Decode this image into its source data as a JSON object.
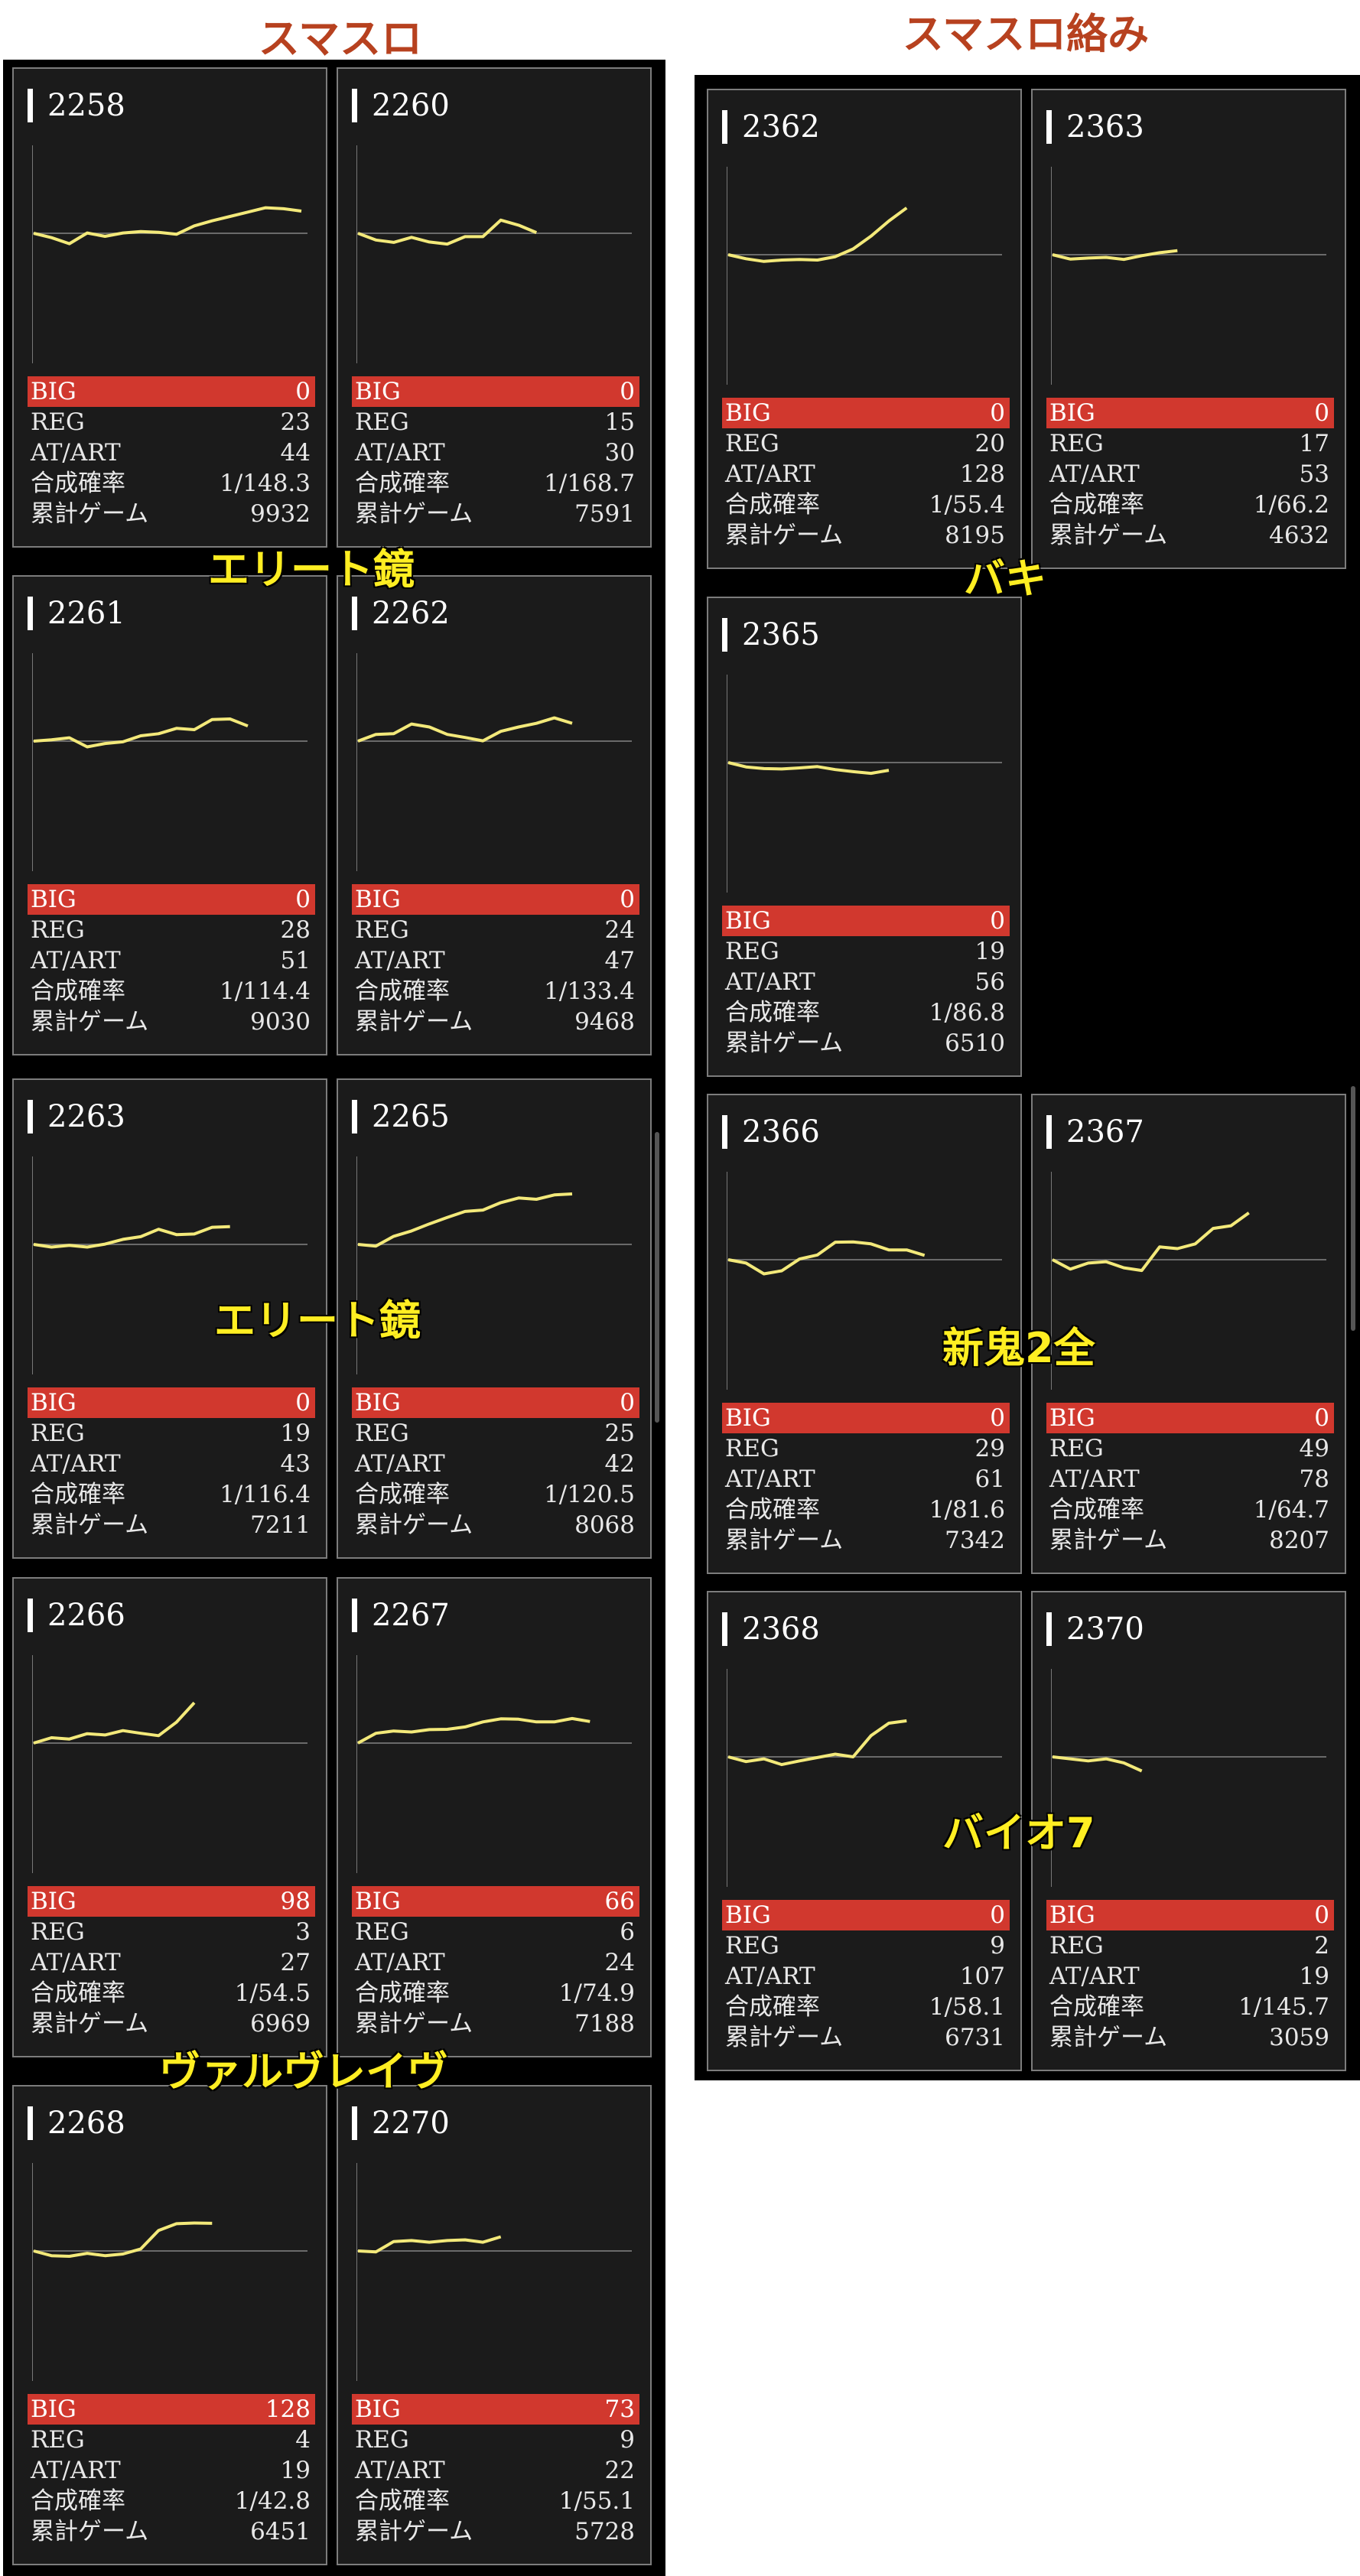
{
  "left_heading": "スマスロ",
  "right_heading": "スマスロ絡み",
  "labels": {
    "big": "BIG",
    "reg": "REG",
    "at": "AT/ART",
    "prob": "合成確率",
    "games": "累計ゲーム"
  },
  "colors": {
    "line": "#f3e97a",
    "big_bar": "#d1382e",
    "overlay_text": "#ffee22",
    "heading": "#b7411f"
  },
  "left_cards": [
    {
      "num": "2258",
      "big": "0",
      "reg": "23",
      "at": "44",
      "prob": "1/148.3",
      "games": "9932",
      "graph": [
        0,
        -0.26,
        -0.62,
        0.02,
        -0.18,
        0.02,
        0.1,
        0.06,
        -0.06,
        0.44,
        0.74,
        1.0,
        1.26,
        1.52,
        1.46,
        1.32
      ]
    },
    {
      "num": "2260",
      "big": "0",
      "reg": "15",
      "at": "30",
      "prob": "1/168.7",
      "games": "7591",
      "graph": [
        0,
        -0.4,
        -0.54,
        -0.24,
        -0.52,
        -0.64,
        -0.2,
        -0.2,
        0.78,
        0.48,
        0.04
      ]
    },
    {
      "num": "2261",
      "big": "0",
      "reg": "28",
      "at": "51",
      "prob": "1/114.4",
      "games": "9030",
      "graph": [
        0,
        0.08,
        0.2,
        -0.34,
        -0.14,
        -0.04,
        0.32,
        0.44,
        0.76,
        0.68,
        1.28,
        1.32,
        0.9
      ]
    },
    {
      "num": "2262",
      "big": "0",
      "reg": "24",
      "at": "47",
      "prob": "1/133.4",
      "games": "9468",
      "graph": [
        0,
        0.4,
        0.44,
        1.02,
        0.84,
        0.4,
        0.22,
        0.02,
        0.58,
        0.84,
        1.06,
        1.38,
        1.06
      ]
    },
    {
      "num": "2263",
      "big": "0",
      "reg": "19",
      "at": "43",
      "prob": "1/116.4",
      "games": "7211",
      "graph": [
        0,
        -0.16,
        -0.06,
        -0.16,
        0.02,
        0.3,
        0.46,
        0.9,
        0.58,
        0.62,
        1.02,
        1.06
      ]
    },
    {
      "num": "2265",
      "big": "0",
      "reg": "25",
      "at": "42",
      "prob": "1/120.5",
      "games": "8068",
      "graph": [
        0,
        -0.1,
        0.48,
        0.8,
        1.22,
        1.6,
        1.96,
        2.04,
        2.48,
        2.76,
        2.68,
        2.94,
        3.0
      ]
    },
    {
      "num": "2266",
      "big": "98",
      "reg": "3",
      "at": "27",
      "prob": "1/54.5",
      "games": "6969",
      "graph": [
        0,
        0.32,
        0.24,
        0.56,
        0.48,
        0.74,
        0.58,
        0.44,
        1.24,
        2.4
      ]
    },
    {
      "num": "2267",
      "big": "66",
      "reg": "6",
      "at": "24",
      "prob": "1/74.9",
      "games": "7188",
      "graph": [
        0,
        0.58,
        0.72,
        0.66,
        0.8,
        0.82,
        0.96,
        1.26,
        1.44,
        1.42,
        1.26,
        1.26,
        1.46,
        1.28
      ]
    },
    {
      "num": "2268",
      "big": "128",
      "reg": "4",
      "at": "19",
      "prob": "1/42.8",
      "games": "6451",
      "graph": [
        0,
        -0.28,
        -0.32,
        -0.14,
        -0.28,
        -0.18,
        0.12,
        1.22,
        1.62,
        1.66,
        1.64
      ]
    },
    {
      "num": "2270",
      "big": "73",
      "reg": "9",
      "at": "22",
      "prob": "1/55.1",
      "games": "5728",
      "graph": [
        0,
        -0.06,
        0.56,
        0.62,
        0.52,
        0.62,
        0.66,
        0.52,
        0.84
      ]
    }
  ],
  "right_cards": [
    {
      "num": "2362",
      "big": "0",
      "reg": "20",
      "at": "128",
      "prob": "1/55.4",
      "games": "8195",
      "graph": [
        0,
        -0.24,
        -0.4,
        -0.32,
        -0.28,
        -0.32,
        -0.12,
        0.34,
        1.1,
        2.0,
        2.78
      ]
    },
    {
      "num": "2363",
      "big": "0",
      "reg": "17",
      "at": "53",
      "prob": "1/66.2",
      "games": "4632",
      "graph": [
        0,
        -0.26,
        -0.2,
        -0.16,
        -0.28,
        -0.06,
        0.12,
        0.24
      ]
    },
    {
      "num": "2365",
      "big": "0",
      "reg": "19",
      "at": "56",
      "prob": "1/86.8",
      "games": "6510",
      "graph": [
        0,
        -0.26,
        -0.36,
        -0.38,
        -0.32,
        -0.24,
        -0.42,
        -0.54,
        -0.64,
        -0.46
      ]
    },
    {
      "num": "2366",
      "big": "0",
      "reg": "29",
      "at": "61",
      "prob": "1/81.6",
      "games": "7342",
      "graph": [
        0,
        -0.2,
        -0.84,
        -0.66,
        0.04,
        0.28,
        1.04,
        1.06,
        0.94,
        0.58,
        0.58,
        0.26
      ]
    },
    {
      "num": "2367",
      "big": "0",
      "reg": "49",
      "at": "78",
      "prob": "1/64.7",
      "games": "8207",
      "graph": [
        0,
        -0.56,
        -0.2,
        -0.12,
        -0.48,
        -0.64,
        0.76,
        0.66,
        0.94,
        1.86,
        2.02,
        2.78
      ]
    },
    {
      "num": "2368",
      "big": "0",
      "reg": "9",
      "at": "107",
      "prob": "1/58.1",
      "games": "6731",
      "graph": [
        0,
        -0.28,
        -0.12,
        -0.46,
        -0.24,
        -0.04,
        0.16,
        0.0,
        1.26,
        2.0,
        2.14
      ]
    },
    {
      "num": "2370",
      "big": "0",
      "reg": "2",
      "at": "19",
      "prob": "1/145.7",
      "games": "3059",
      "graph": [
        0,
        -0.12,
        -0.24,
        -0.12,
        -0.36,
        -0.84
      ]
    }
  ],
  "overlays": [
    "エリート鏡",
    "エリート鏡",
    "ヴァルヴレイヴ",
    "バキ",
    "新鬼2全",
    "バイオ7"
  ]
}
